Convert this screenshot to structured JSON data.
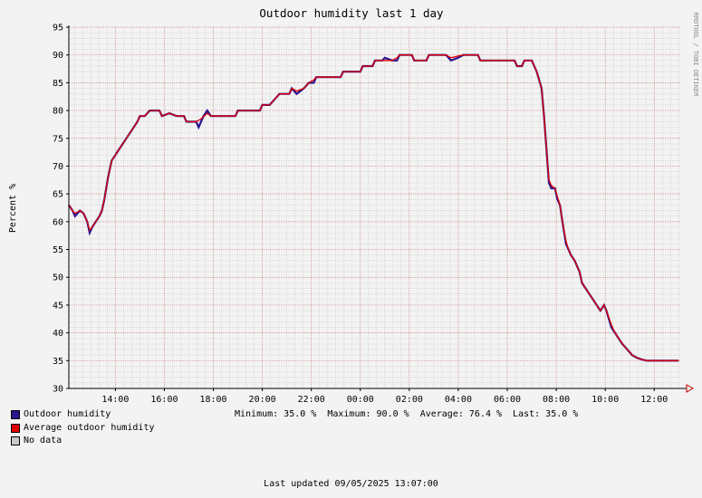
{
  "chart_data": {
    "type": "line",
    "title": "Outdoor humidity last 1 day",
    "ylabel": "Percent  %",
    "side_label": "RRDTOOL / TOBI OETIKER",
    "ylim": [
      30,
      95
    ],
    "y_ticks": [
      "30",
      "35",
      "40",
      "45",
      "50",
      "55",
      "60",
      "65",
      "70",
      "75",
      "80",
      "85",
      "90",
      "95"
    ],
    "x_tick_labels": [
      "14:00",
      "16:00",
      "18:00",
      "20:00",
      "22:00",
      "00:00",
      "02:00",
      "04:00",
      "06:00",
      "08:00",
      "10:00",
      "12:00"
    ],
    "x_start_hour": 12.1,
    "x_end_hour": 37.1,
    "grid": true,
    "series": [
      {
        "name": "Outdoor humidity",
        "color": "#2b148f",
        "points": [
          [
            12.1,
            63
          ],
          [
            12.25,
            62
          ],
          [
            12.35,
            61
          ],
          [
            12.45,
            61.5
          ],
          [
            12.55,
            62
          ],
          [
            12.7,
            61.5
          ],
          [
            12.85,
            60
          ],
          [
            12.95,
            58
          ],
          [
            13.05,
            59
          ],
          [
            13.2,
            60
          ],
          [
            13.35,
            61
          ],
          [
            13.45,
            62
          ],
          [
            13.55,
            64
          ],
          [
            13.7,
            68
          ],
          [
            13.85,
            71
          ],
          [
            14.0,
            72
          ],
          [
            14.15,
            73
          ],
          [
            14.3,
            74
          ],
          [
            14.45,
            75
          ],
          [
            14.6,
            76
          ],
          [
            14.75,
            77
          ],
          [
            14.9,
            78
          ],
          [
            15.0,
            79
          ],
          [
            15.2,
            79
          ],
          [
            15.4,
            80
          ],
          [
            15.8,
            80
          ],
          [
            15.9,
            79
          ],
          [
            16.2,
            79.5
          ],
          [
            16.5,
            79
          ],
          [
            16.8,
            79
          ],
          [
            16.9,
            78
          ],
          [
            17.3,
            78
          ],
          [
            17.4,
            77
          ],
          [
            17.6,
            79
          ],
          [
            17.75,
            80
          ],
          [
            17.9,
            79
          ],
          [
            18.9,
            79
          ],
          [
            19.0,
            80
          ],
          [
            19.9,
            80
          ],
          [
            20.0,
            81
          ],
          [
            20.3,
            81
          ],
          [
            20.5,
            82
          ],
          [
            20.7,
            83
          ],
          [
            21.1,
            83
          ],
          [
            21.2,
            84
          ],
          [
            21.4,
            83
          ],
          [
            21.7,
            84
          ],
          [
            21.9,
            85
          ],
          [
            22.1,
            85
          ],
          [
            22.2,
            86
          ],
          [
            22.6,
            86
          ],
          [
            23.2,
            86
          ],
          [
            23.3,
            87
          ],
          [
            23.7,
            87
          ],
          [
            24.0,
            87
          ],
          [
            24.1,
            88
          ],
          [
            24.5,
            88
          ],
          [
            24.6,
            89
          ],
          [
            24.9,
            89
          ],
          [
            25.0,
            89.5
          ],
          [
            25.3,
            89
          ],
          [
            25.5,
            89
          ],
          [
            25.6,
            90
          ],
          [
            26.1,
            90
          ],
          [
            26.2,
            89
          ],
          [
            26.7,
            89
          ],
          [
            26.8,
            90
          ],
          [
            27.0,
            90
          ],
          [
            27.5,
            90
          ],
          [
            27.7,
            89
          ],
          [
            28.0,
            89.5
          ],
          [
            28.2,
            90
          ],
          [
            28.8,
            90
          ],
          [
            28.9,
            89
          ],
          [
            30.3,
            89
          ],
          [
            30.4,
            88
          ],
          [
            30.6,
            88
          ],
          [
            30.7,
            89
          ],
          [
            31.0,
            89
          ],
          [
            31.2,
            87
          ],
          [
            31.4,
            84
          ],
          [
            31.5,
            79
          ],
          [
            31.6,
            73
          ],
          [
            31.7,
            67
          ],
          [
            31.8,
            66
          ],
          [
            31.95,
            66
          ],
          [
            32.05,
            64
          ],
          [
            32.15,
            63
          ],
          [
            32.25,
            60
          ],
          [
            32.4,
            56
          ],
          [
            32.5,
            55
          ],
          [
            32.6,
            54
          ],
          [
            32.75,
            53
          ],
          [
            32.85,
            52
          ],
          [
            32.95,
            51
          ],
          [
            33.05,
            49
          ],
          [
            33.2,
            48
          ],
          [
            33.35,
            47
          ],
          [
            33.5,
            46
          ],
          [
            33.65,
            45
          ],
          [
            33.8,
            44
          ],
          [
            33.95,
            45
          ],
          [
            34.05,
            44
          ],
          [
            34.25,
            41
          ],
          [
            34.4,
            40
          ],
          [
            34.55,
            39
          ],
          [
            34.7,
            38
          ],
          [
            34.9,
            37
          ],
          [
            35.1,
            36
          ],
          [
            35.3,
            35.5
          ],
          [
            35.5,
            35.2
          ],
          [
            35.7,
            35.0
          ],
          [
            36.0,
            35.0
          ],
          [
            36.3,
            35.0
          ],
          [
            37.0,
            35.0
          ]
        ]
      },
      {
        "name": "Average outdoor humidity",
        "color": "#e00000",
        "points": [
          [
            12.1,
            63
          ],
          [
            12.25,
            62
          ],
          [
            12.35,
            61.5
          ],
          [
            12.55,
            62
          ],
          [
            12.7,
            61.5
          ],
          [
            12.85,
            60
          ],
          [
            12.95,
            58.5
          ],
          [
            13.05,
            59
          ],
          [
            13.2,
            60
          ],
          [
            13.35,
            61
          ],
          [
            13.45,
            62
          ],
          [
            13.55,
            64
          ],
          [
            13.7,
            68
          ],
          [
            13.85,
            71
          ],
          [
            14.0,
            72
          ],
          [
            14.15,
            73
          ],
          [
            14.3,
            74
          ],
          [
            14.45,
            75
          ],
          [
            14.6,
            76
          ],
          [
            14.75,
            77
          ],
          [
            14.9,
            78
          ],
          [
            15.0,
            79
          ],
          [
            15.2,
            79
          ],
          [
            15.4,
            80
          ],
          [
            15.8,
            80
          ],
          [
            15.9,
            79
          ],
          [
            16.2,
            79.5
          ],
          [
            16.5,
            79
          ],
          [
            16.8,
            79
          ],
          [
            16.9,
            78
          ],
          [
            17.3,
            78
          ],
          [
            17.5,
            78.5
          ],
          [
            17.75,
            79.5
          ],
          [
            17.9,
            79
          ],
          [
            18.9,
            79
          ],
          [
            19.0,
            80
          ],
          [
            19.9,
            80
          ],
          [
            20.0,
            81
          ],
          [
            20.3,
            81
          ],
          [
            20.5,
            82
          ],
          [
            20.7,
            83
          ],
          [
            21.1,
            83
          ],
          [
            21.2,
            84
          ],
          [
            21.4,
            83.5
          ],
          [
            21.7,
            84
          ],
          [
            21.9,
            85
          ],
          [
            22.1,
            85.5
          ],
          [
            22.2,
            86
          ],
          [
            23.2,
            86
          ],
          [
            23.3,
            87
          ],
          [
            24.0,
            87
          ],
          [
            24.1,
            88
          ],
          [
            24.5,
            88
          ],
          [
            24.6,
            89
          ],
          [
            24.9,
            89
          ],
          [
            25.3,
            89
          ],
          [
            25.5,
            89.5
          ],
          [
            25.6,
            90
          ],
          [
            26.1,
            90
          ],
          [
            26.2,
            89
          ],
          [
            26.7,
            89
          ],
          [
            26.8,
            90
          ],
          [
            27.5,
            90
          ],
          [
            27.7,
            89.5
          ],
          [
            28.2,
            90
          ],
          [
            28.8,
            90
          ],
          [
            28.9,
            89
          ],
          [
            30.3,
            89
          ],
          [
            30.4,
            88
          ],
          [
            30.6,
            88
          ],
          [
            30.7,
            89
          ],
          [
            31.0,
            89
          ],
          [
            31.2,
            87
          ],
          [
            31.4,
            84
          ],
          [
            31.5,
            79
          ],
          [
            31.6,
            73
          ],
          [
            31.7,
            67.5
          ],
          [
            31.8,
            66.5
          ],
          [
            31.95,
            66
          ],
          [
            32.05,
            64.5
          ],
          [
            32.15,
            63
          ],
          [
            32.25,
            60
          ],
          [
            32.4,
            56.5
          ],
          [
            32.5,
            55
          ],
          [
            32.6,
            54
          ],
          [
            32.75,
            53
          ],
          [
            32.85,
            52
          ],
          [
            32.95,
            51
          ],
          [
            33.05,
            49
          ],
          [
            33.2,
            48
          ],
          [
            33.35,
            47
          ],
          [
            33.5,
            46
          ],
          [
            33.65,
            45
          ],
          [
            33.8,
            44
          ],
          [
            33.95,
            45
          ],
          [
            34.05,
            44
          ],
          [
            34.25,
            41.5
          ],
          [
            34.4,
            40
          ],
          [
            34.55,
            39
          ],
          [
            34.7,
            38
          ],
          [
            34.9,
            37
          ],
          [
            35.1,
            36
          ],
          [
            35.3,
            35.5
          ],
          [
            35.5,
            35.2
          ],
          [
            35.7,
            35.0
          ],
          [
            37.0,
            35.0
          ]
        ]
      }
    ]
  },
  "legend": [
    {
      "label": "Outdoor humidity",
      "color": "#2b148f"
    },
    {
      "label": "Average outdoor humidity",
      "color": "#e00000"
    },
    {
      "label": "No data",
      "color": "#c8c8c8"
    }
  ],
  "stats": {
    "text": "Minimum: 35.0 %  Maximum: 90.0 %  Average: 76.4 %  Last: 35.0 %"
  },
  "footer": {
    "updated": "Last updated 09/05/2025 13:07:00"
  }
}
